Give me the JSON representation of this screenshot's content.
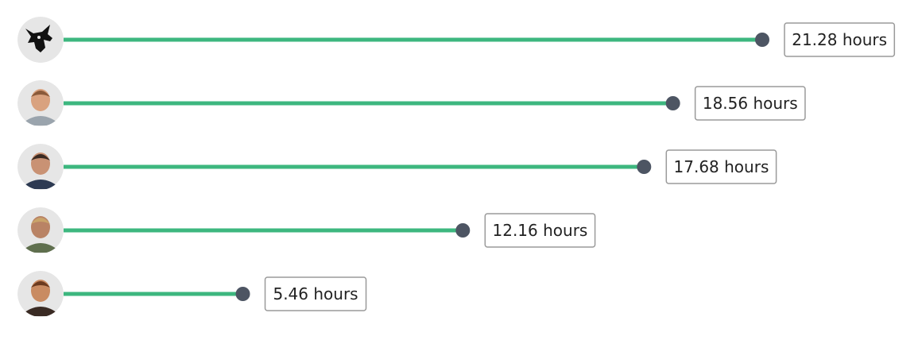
{
  "chart_data": {
    "type": "bar",
    "orientation": "horizontal",
    "style": "lollipop",
    "unit": "hours",
    "categories": [
      "avatar-1",
      "avatar-2",
      "avatar-3",
      "avatar-4",
      "avatar-5"
    ],
    "values": [
      21.28,
      18.56,
      17.68,
      12.16,
      5.46
    ],
    "labels": [
      "21.28 hours",
      "18.56 hours",
      "17.68 hours",
      "12.16 hours",
      "5.46 hours"
    ],
    "avatars": [
      "bull-icon",
      "person-icon",
      "person-icon",
      "person-icon",
      "person-icon"
    ],
    "title": "",
    "xlabel": "",
    "ylabel": "",
    "xlim": [
      0,
      21.28
    ],
    "grid": false,
    "legend": "none",
    "colors": {
      "line": "#3db77f",
      "dot": "#4d5563",
      "box_border": "#9a9a9a",
      "text": "#222222",
      "avatar_bg": "#e6e6e6"
    }
  }
}
